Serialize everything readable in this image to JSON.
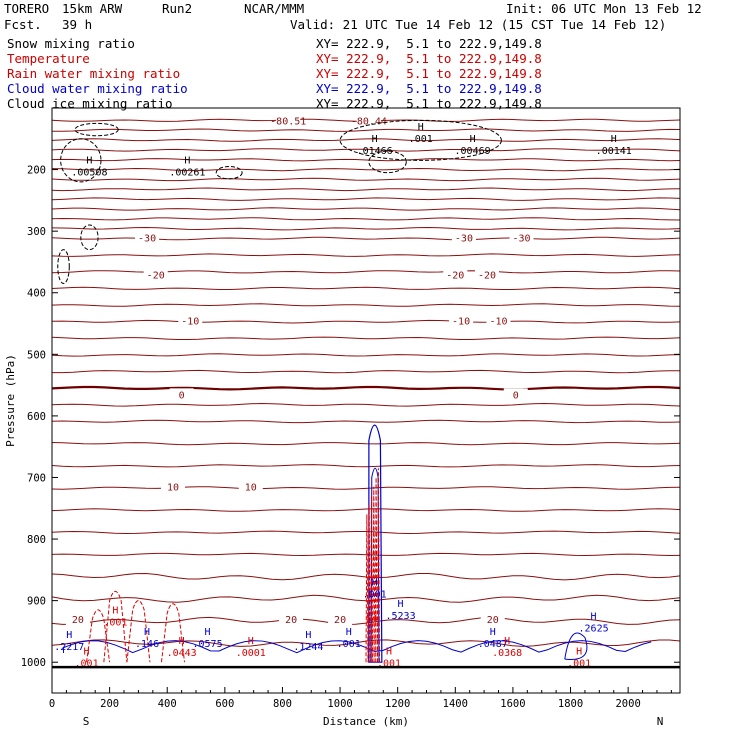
{
  "header": {
    "model": "TORERO",
    "resolution": "15km ARW",
    "run": "Run2",
    "org": "NCAR/MMM",
    "init": "Init: 06 UTC Mon 13 Feb 12",
    "fcst_label": "Fcst.",
    "fcst_value": "39 h",
    "valid": "Valid: 21 UTC Tue 14 Feb 12 (15 CST Tue 14 Feb 12)"
  },
  "legend": [
    {
      "name": "Snow mixing ratio",
      "color": "#000000",
      "xy": "XY= 222.9,  5.1 to 222.9,149.8"
    },
    {
      "name": "Temperature",
      "color": "#cc0000",
      "xy": "XY= 222.9,  5.1 to 222.9,149.8"
    },
    {
      "name": "Rain water mixing ratio",
      "color": "#cc0000",
      "xy": "XY= 222.9,  5.1 to 222.9,149.8"
    },
    {
      "name": "Cloud water mixing ratio",
      "color": "#0000cc",
      "xy": "XY= 222.9,  5.1 to 222.9,149.8"
    },
    {
      "name": "Cloud ice mixing ratio",
      "color": "#000000",
      "xy": "XY= 222.9,  5.1 to 222.9,149.8"
    }
  ],
  "colors": {
    "temperature": "#8b1010",
    "freezing": "#6e0000",
    "rain": "#dd0000",
    "cloud_water": "#0000cc",
    "ice": "#000000",
    "axis": "#000000"
  },
  "chart_data": {
    "type": "contour",
    "xlabel": "Distance (km)",
    "ylabel": "Pressure (hPa)",
    "xlim": [
      0,
      2180
    ],
    "ylim": [
      1050,
      100
    ],
    "x_ticks": [
      0,
      200,
      400,
      600,
      800,
      1000,
      1200,
      1400,
      1600,
      1800,
      2000
    ],
    "y_ticks": [
      200,
      300,
      400,
      500,
      600,
      700,
      800,
      900,
      1000
    ],
    "x_end_labels": {
      "left": "S",
      "right": "N"
    },
    "temperature_contours": [
      {
        "value": -80.51,
        "p": 120,
        "label_x": 820,
        "label": "-80.51"
      },
      {
        "value": -80.44,
        "p": 120,
        "label_x": 1100,
        "label": "-80.44"
      },
      {
        "value": -30,
        "p": 310,
        "label_positions_km": [
          330,
          1430,
          1630
        ],
        "label": "-30"
      },
      {
        "value": -20,
        "p": 370,
        "label_positions_km": [
          360,
          1400,
          1510
        ],
        "label": "-20"
      },
      {
        "value": -10,
        "p": 445,
        "label_positions_km": [
          480,
          1420,
          1550
        ],
        "label": "-10"
      },
      {
        "value": 0,
        "p": 565,
        "label_positions_km": [
          450,
          1610
        ],
        "label": "0"
      },
      {
        "value": 10,
        "p": 715,
        "label_positions_km": [
          420,
          690
        ],
        "label": "10"
      },
      {
        "value": 20,
        "p": 930,
        "label_positions_km": [
          90,
          830,
          1000,
          1530
        ],
        "label": "20"
      }
    ],
    "maxima": [
      {
        "series": "ice",
        "x_km": 1120,
        "p": 175,
        "label": ".01466"
      },
      {
        "series": "ice",
        "x_km": 1460,
        "p": 175,
        "label": ".00469"
      },
      {
        "series": "ice",
        "x_km": 1950,
        "p": 175,
        "label": ".00141"
      },
      {
        "series": "ice",
        "x_km": 130,
        "p": 210,
        "label": ".00508"
      },
      {
        "series": "ice",
        "x_km": 470,
        "p": 210,
        "label": ".00261"
      },
      {
        "series": "ice",
        "x_km": 1280,
        "p": 155,
        "label": ".001"
      },
      {
        "series": "cloud",
        "x_km": 60,
        "p": 980,
        "label": ".2217"
      },
      {
        "series": "cloud",
        "x_km": 330,
        "p": 975,
        "label": ".146"
      },
      {
        "series": "cloud",
        "x_km": 540,
        "p": 975,
        "label": ".0575"
      },
      {
        "series": "cloud",
        "x_km": 890,
        "p": 980,
        "label": ".1244"
      },
      {
        "series": "cloud",
        "x_km": 1210,
        "p": 930,
        "label": ".5233"
      },
      {
        "series": "cloud",
        "x_km": 1530,
        "p": 975,
        "label": ".0487"
      },
      {
        "series": "cloud",
        "x_km": 1880,
        "p": 950,
        "label": ".2625"
      },
      {
        "series": "cloud",
        "x_km": 1120,
        "p": 895,
        "label": ".001"
      },
      {
        "series": "cloud",
        "x_km": 1030,
        "p": 975,
        "label": ".001"
      },
      {
        "series": "rain",
        "x_km": 450,
        "p": 990,
        "label": ".0443"
      },
      {
        "series": "rain",
        "x_km": 690,
        "p": 990,
        "label": ".0001"
      },
      {
        "series": "rain",
        "x_km": 1580,
        "p": 990,
        "label": ".0368"
      },
      {
        "series": "rain",
        "x_km": 220,
        "p": 940,
        "label": ".001"
      },
      {
        "series": "rain",
        "x_km": 120,
        "p": 1007,
        "label": ".001"
      },
      {
        "series": "rain",
        "x_km": 1830,
        "p": 1007,
        "label": ".001"
      },
      {
        "series": "rain",
        "x_km": 1170,
        "p": 1007,
        "label": ".001"
      },
      {
        "series": "rain",
        "x_km": 1110,
        "p": 935,
        "label": "54"
      }
    ]
  }
}
